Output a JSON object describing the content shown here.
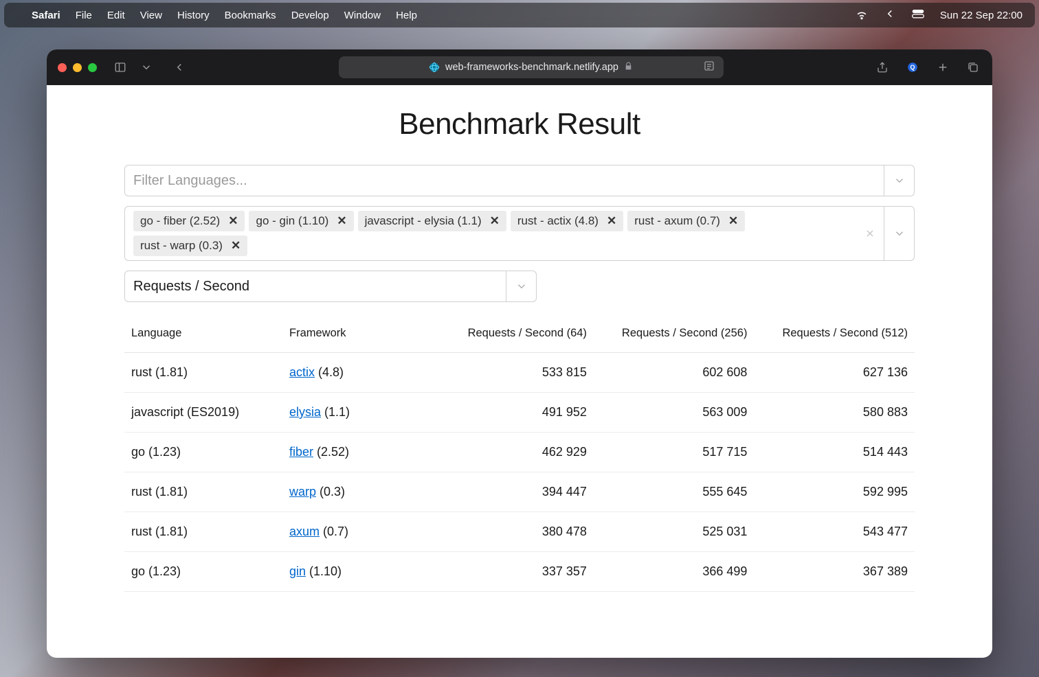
{
  "menubar": {
    "app": "Safari",
    "items": [
      "File",
      "Edit",
      "View",
      "History",
      "Bookmarks",
      "Develop",
      "Window",
      "Help"
    ],
    "clock": "Sun 22 Sep  22:00"
  },
  "browser": {
    "url_display": "web-frameworks-benchmark.netlify.app"
  },
  "page": {
    "title": "Benchmark Result",
    "lang_filter_placeholder": "Filter Languages...",
    "framework_tags": [
      "go - fiber (2.52)",
      "go - gin (1.10)",
      "javascript - elysia (1.1)",
      "rust - actix (4.8)",
      "rust - axum (0.7)",
      "rust - warp (0.3)"
    ],
    "metric_value": "Requests / Second",
    "table": {
      "columns": [
        "Language",
        "Framework",
        "Requests / Second (64)",
        "Requests / Second (256)",
        "Requests / Second (512)"
      ],
      "rows": [
        {
          "language": "rust (1.81)",
          "framework": "actix",
          "fw_version": "(4.8)",
          "r64": "533 815",
          "r256": "602 608",
          "r512": "627 136"
        },
        {
          "language": "javascript (ES2019)",
          "framework": "elysia",
          "fw_version": "(1.1)",
          "r64": "491 952",
          "r256": "563 009",
          "r512": "580 883"
        },
        {
          "language": "go (1.23)",
          "framework": "fiber",
          "fw_version": "(2.52)",
          "r64": "462 929",
          "r256": "517 715",
          "r512": "514 443"
        },
        {
          "language": "rust (1.81)",
          "framework": "warp",
          "fw_version": "(0.3)",
          "r64": "394 447",
          "r256": "555 645",
          "r512": "592 995"
        },
        {
          "language": "rust (1.81)",
          "framework": "axum",
          "fw_version": "(0.7)",
          "r64": "380 478",
          "r256": "525 031",
          "r512": "543 477"
        },
        {
          "language": "go (1.23)",
          "framework": "gin",
          "fw_version": "(1.10)",
          "r64": "337 357",
          "r256": "366 499",
          "r512": "367 389"
        }
      ]
    }
  },
  "colors": {
    "link": "#0066cc",
    "tag_bg": "#ececec",
    "border": "#d0d0d0",
    "row_border": "#ececec",
    "toolbar_bg": "#1c1c1e",
    "urlbar_bg": "#3a3a3c"
  }
}
